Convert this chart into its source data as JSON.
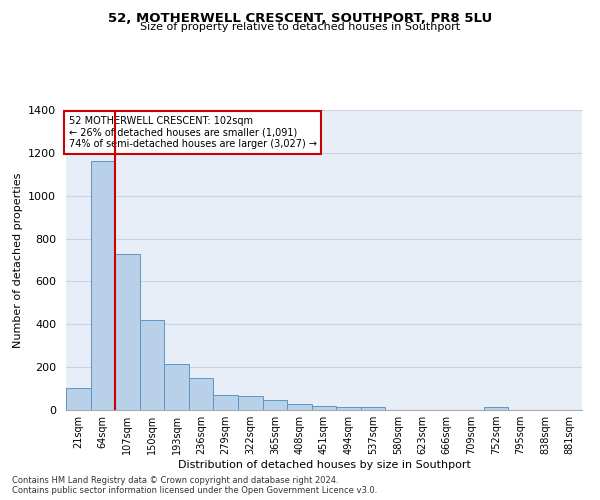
{
  "title": "52, MOTHERWELL CRESCENT, SOUTHPORT, PR8 5LU",
  "subtitle": "Size of property relative to detached houses in Southport",
  "xlabel": "Distribution of detached houses by size in Southport",
  "ylabel": "Number of detached properties",
  "categories": [
    "21sqm",
    "64sqm",
    "107sqm",
    "150sqm",
    "193sqm",
    "236sqm",
    "279sqm",
    "322sqm",
    "365sqm",
    "408sqm",
    "451sqm",
    "494sqm",
    "537sqm",
    "580sqm",
    "623sqm",
    "666sqm",
    "709sqm",
    "752sqm",
    "795sqm",
    "838sqm",
    "881sqm"
  ],
  "bar_values": [
    105,
    1160,
    730,
    420,
    215,
    150,
    70,
    67,
    47,
    30,
    17,
    15,
    15,
    0,
    0,
    0,
    0,
    15,
    0,
    0,
    0
  ],
  "bar_color": "#b8d0e8",
  "bar_edge_color": "#5a96c8",
  "grid_color": "#c8d4e4",
  "red_line_color": "#cc0000",
  "annotation_text": "52 MOTHERWELL CRESCENT: 102sqm\n← 26% of detached houses are smaller (1,091)\n74% of semi-detached houses are larger (3,027) →",
  "annotation_box_color": "#ffffff",
  "annotation_box_edge_color": "#cc0000",
  "ylim": [
    0,
    1400
  ],
  "yticks": [
    0,
    200,
    400,
    600,
    800,
    1000,
    1200,
    1400
  ],
  "footnote": "Contains HM Land Registry data © Crown copyright and database right 2024.\nContains public sector information licensed under the Open Government Licence v3.0.",
  "bg_color": "#e8eef8"
}
